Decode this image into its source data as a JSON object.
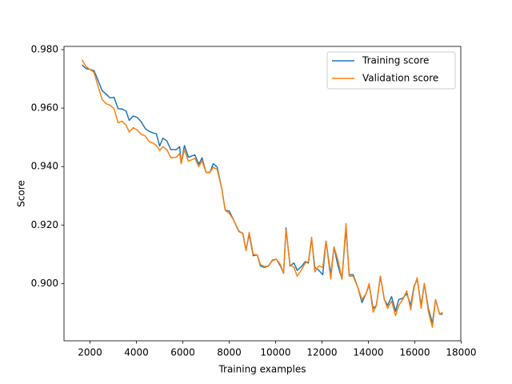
{
  "chart_data": {
    "type": "line",
    "xlabel": "Training examples",
    "ylabel": "Score",
    "x": [
      1655,
      1828,
      2000,
      2172,
      2345,
      2517,
      2690,
      2862,
      3034,
      3207,
      3379,
      3552,
      3690,
      3862,
      4034,
      4207,
      4379,
      4552,
      4724,
      4862,
      5000,
      5138,
      5310,
      5483,
      5724,
      5862,
      5931,
      6069,
      6241,
      6517,
      6690,
      6828,
      7000,
      7172,
      7310,
      7483,
      7690,
      7828,
      8000,
      8172,
      8414,
      8586,
      8724,
      8862,
      9034,
      9207,
      9345,
      9517,
      9690,
      9862,
      10034,
      10207,
      10345,
      10448,
      10621,
      10793,
      10931,
      11138,
      11276,
      11414,
      11552,
      11690,
      11862,
      12034,
      12172,
      12379,
      12517,
      12690,
      12862,
      13034,
      13172,
      13345,
      13552,
      13724,
      13897,
      14034,
      14207,
      14345,
      14517,
      14690,
      14828,
      15000,
      15172,
      15310,
      15483,
      15655,
      15828,
      15966,
      16103,
      16276,
      16414,
      16586,
      16759,
      16897,
      17069,
      17207
    ],
    "series": [
      {
        "name": "Training score",
        "color": "#1f77b4",
        "values": [
          0.9748,
          0.9735,
          0.9732,
          0.9728,
          0.9695,
          0.966,
          0.9648,
          0.9635,
          0.9637,
          0.9598,
          0.9597,
          0.959,
          0.9558,
          0.9573,
          0.9568,
          0.9553,
          0.953,
          0.952,
          0.9515,
          0.9512,
          0.947,
          0.9497,
          0.9488,
          0.9458,
          0.9458,
          0.9468,
          0.941,
          0.9472,
          0.9432,
          0.944,
          0.9408,
          0.943,
          0.938,
          0.938,
          0.941,
          0.9398,
          0.932,
          0.925,
          0.9248,
          0.922,
          0.9178,
          0.9172,
          0.9115,
          0.9168,
          0.9095,
          0.9098,
          0.906,
          0.9055,
          0.906,
          0.908,
          0.9083,
          0.906,
          0.9035,
          0.919,
          0.906,
          0.907,
          0.9045,
          0.906,
          0.9075,
          0.907,
          0.9155,
          0.9055,
          0.9045,
          0.903,
          0.9145,
          0.903,
          0.9125,
          0.906,
          0.9015,
          0.919,
          0.903,
          0.903,
          0.8985,
          0.8935,
          0.8965,
          0.8995,
          0.8915,
          0.8925,
          0.9025,
          0.8945,
          0.8925,
          0.8955,
          0.8905,
          0.8945,
          0.895,
          0.8965,
          0.8925,
          0.899,
          0.9015,
          0.8925,
          0.9,
          0.8915,
          0.8865,
          0.8945,
          0.8895,
          0.8895
        ]
      },
      {
        "name": "Validation score",
        "color": "#ff7f0e",
        "values": [
          0.9765,
          0.9742,
          0.9732,
          0.9722,
          0.9675,
          0.963,
          0.9615,
          0.961,
          0.9598,
          0.955,
          0.9555,
          0.9542,
          0.9518,
          0.9533,
          0.9525,
          0.951,
          0.9505,
          0.9485,
          0.948,
          0.9472,
          0.9455,
          0.9468,
          0.9458,
          0.943,
          0.9432,
          0.9445,
          0.941,
          0.9458,
          0.9418,
          0.9428,
          0.94,
          0.942,
          0.938,
          0.938,
          0.9398,
          0.939,
          0.932,
          0.925,
          0.924,
          0.922,
          0.918,
          0.917,
          0.9112,
          0.9175,
          0.91,
          0.9098,
          0.9065,
          0.9058,
          0.906,
          0.9078,
          0.9083,
          0.9065,
          0.9035,
          0.9185,
          0.9065,
          0.9055,
          0.9025,
          0.905,
          0.907,
          0.9075,
          0.9158,
          0.904,
          0.906,
          0.9055,
          0.9145,
          0.9015,
          0.9125,
          0.908,
          0.9015,
          0.9205,
          0.9025,
          0.9025,
          0.8985,
          0.8945,
          0.8965,
          0.9,
          0.8902,
          0.8925,
          0.9025,
          0.8945,
          0.8915,
          0.894,
          0.889,
          0.8925,
          0.8945,
          0.8975,
          0.891,
          0.8985,
          0.902,
          0.8915,
          0.9,
          0.8905,
          0.885,
          0.8945,
          0.8895,
          0.8902
        ]
      }
    ],
    "xlim": [
      877,
      17985
    ],
    "ylim": [
      0.8804,
      0.9811
    ],
    "xticks": [
      2000,
      4000,
      6000,
      8000,
      10000,
      12000,
      14000,
      16000,
      18000
    ],
    "yticks": [
      {
        "value": 0.9,
        "label": "0.900"
      },
      {
        "value": 0.92,
        "label": "0.920"
      },
      {
        "value": 0.94,
        "label": "0.940"
      },
      {
        "value": 0.96,
        "label": "0.960"
      },
      {
        "value": 0.98,
        "label": "0.980"
      }
    ],
    "grid": false,
    "legend": "upper right"
  }
}
